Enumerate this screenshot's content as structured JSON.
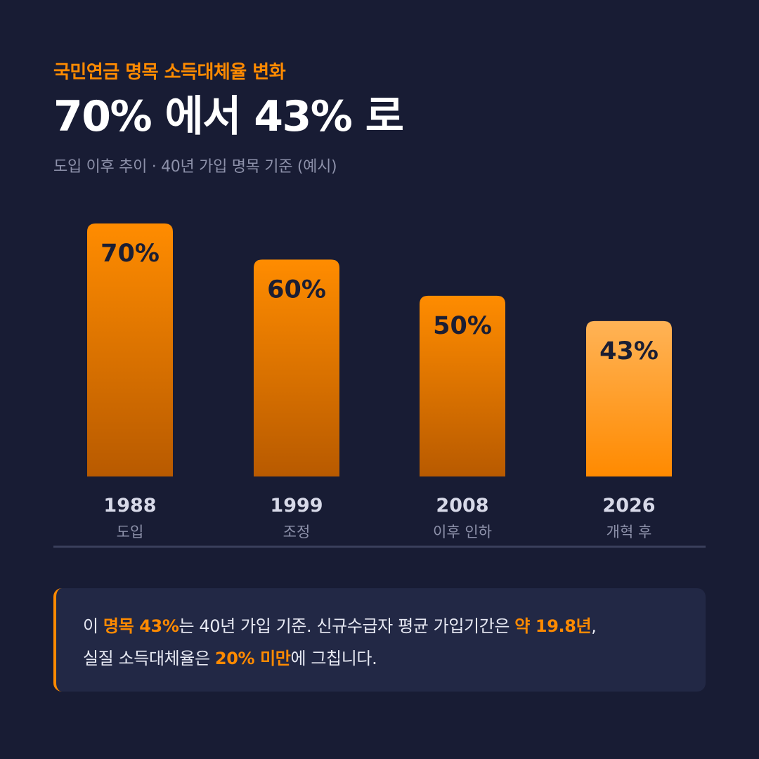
{
  "header": {
    "eyebrow": "국민연금 명목 소득대체율 변화",
    "title": "70% 에서 43% 로",
    "subtitle": "도입 이후 추이 · 40년 가입 명목 기준 (예시)"
  },
  "chart_data": {
    "type": "bar",
    "categories": [
      "1988",
      "1999",
      "2008",
      "2026"
    ],
    "category_sublabels": [
      "도입",
      "조정",
      "이후 인하",
      "개혁 후"
    ],
    "values": [
      70,
      60,
      50,
      43
    ],
    "data_labels": [
      "70%",
      "60%",
      "50%",
      "43%"
    ],
    "unit": "%",
    "ylim": [
      0,
      70
    ],
    "grid": false,
    "legend": "none",
    "highlight_index": 3
  },
  "colors": {
    "background": "#181c34",
    "accent": "#ff8a00",
    "bar_top": "#ff8c00",
    "bar_bottom": "#b85a00",
    "highlight_top": "#ffb356",
    "highlight_bottom": "#ff8a00",
    "baseline": "#3a3f5c"
  },
  "note": {
    "line1_pre": "이 ",
    "line1_hl1": "명목 43%",
    "line1_mid": "는 40년 가입 기준. 신규수급자 평균 가입기간은 ",
    "line1_hl2": "약 19.8년",
    "line1_post": ",",
    "line2_pre": "실질 소득대체율은 ",
    "line2_hl": "20% 미만",
    "line2_post": "에 그칩니다."
  }
}
